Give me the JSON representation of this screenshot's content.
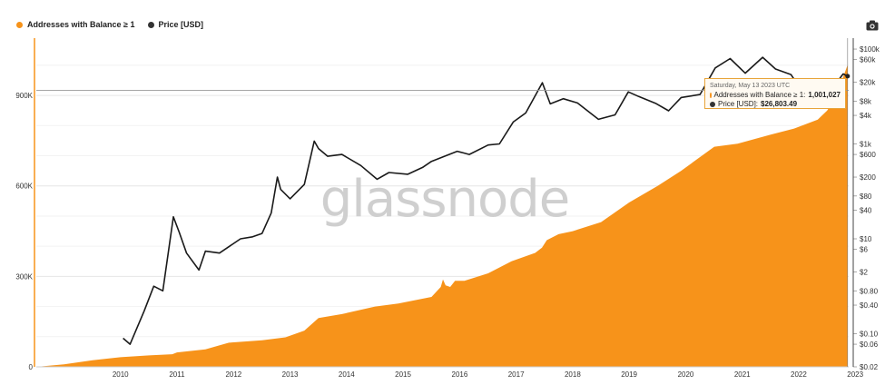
{
  "legend": {
    "series1": "Addresses with Balance ≥ 1",
    "series2": "Price [USD]"
  },
  "colors": {
    "addresses": "#f7931a",
    "price": "#1a1a1a",
    "grid": "#e6e6e6"
  },
  "watermark": "glassnode",
  "icons": {
    "toolbar": "camera-icon"
  },
  "tooltip": {
    "date": "Saturday, May 13 2023 UTC",
    "series1_label": "Addresses with Balance ≥ 1:",
    "series1_value": "1,001,027",
    "series2_label": "Price [USD]:",
    "series2_value": "$26,803.49"
  },
  "chart_data": {
    "type": "area",
    "title": "",
    "xlabel": "",
    "ylabel": "",
    "x_tick_labels": [
      "2010",
      "2011",
      "2012",
      "2013",
      "2014",
      "2015",
      "2016",
      "2017",
      "2018",
      "2019",
      "2020",
      "2021",
      "2022",
      "2023"
    ],
    "y_left_tick_labels": [
      "0",
      "300K",
      "600K",
      "900K"
    ],
    "y_left_ticks": [
      0,
      300000,
      600000,
      900000
    ],
    "y_right_tick_labels": [
      "$100k",
      "$60k",
      "$20k",
      "$8k",
      "$4k",
      "$1k",
      "$600",
      "$200",
      "$80",
      "$40",
      "$10",
      "$6",
      "$2",
      "$0.80",
      "$0.40",
      "$0.10",
      "$0.06",
      "$0.02"
    ],
    "y_right_ticks": [
      100000,
      60000,
      20000,
      8000,
      4000,
      1000,
      600,
      200,
      80,
      40,
      10,
      6,
      2,
      0.8,
      0.4,
      0.1,
      0.06,
      0.02
    ],
    "y_right_scale": "log",
    "grid": true,
    "legend_position": "top-left",
    "reference_line": 917000,
    "series": [
      {
        "name": "Addresses with Balance ≥ 1",
        "axis": "left",
        "kind": "area",
        "x": [
          "2009-01-03",
          "2009-07-01",
          "2010-01-01",
          "2010-07-01",
          "2011-01-01",
          "2011-06-01",
          "2011-07-01",
          "2012-01-01",
          "2012-06-01",
          "2013-01-01",
          "2013-06-01",
          "2013-10-01",
          "2014-01-01",
          "2014-06-01",
          "2015-01-01",
          "2015-06-01",
          "2016-01-01",
          "2016-03-01",
          "2016-03-15",
          "2016-04-01",
          "2016-05-01",
          "2016-06-01",
          "2016-08-01",
          "2017-01-01",
          "2017-06-01",
          "2017-11-01",
          "2017-12-15",
          "2018-01-15",
          "2018-04-01",
          "2018-07-01",
          "2019-01-01",
          "2019-07-01",
          "2020-01-01",
          "2020-06-01",
          "2021-01-01",
          "2021-06-01",
          "2022-01-01",
          "2022-06-01",
          "2022-11-01",
          "2023-01-01",
          "2023-03-01",
          "2023-05-13"
        ],
        "values": [
          0,
          8000,
          22000,
          32000,
          38000,
          42000,
          48000,
          58000,
          80000,
          88000,
          98000,
          120000,
          162000,
          175000,
          200000,
          210000,
          232000,
          265000,
          290000,
          270000,
          265000,
          285000,
          285000,
          310000,
          350000,
          378000,
          395000,
          420000,
          440000,
          450000,
          480000,
          545000,
          600000,
          650000,
          730000,
          740000,
          770000,
          790000,
          820000,
          850000,
          900000,
          1001027
        ]
      },
      {
        "name": "Price [USD]",
        "axis": "right",
        "kind": "line",
        "x": [
          "2010-07-18",
          "2010-09-01",
          "2010-12-01",
          "2011-02-01",
          "2011-04-01",
          "2011-06-08",
          "2011-07-15",
          "2011-09-01",
          "2011-11-20",
          "2012-01-01",
          "2012-04-01",
          "2012-08-15",
          "2012-11-01",
          "2013-01-01",
          "2013-03-01",
          "2013-04-10",
          "2013-05-01",
          "2013-07-01",
          "2013-10-01",
          "2013-12-04",
          "2014-01-01",
          "2014-03-01",
          "2014-06-01",
          "2014-10-01",
          "2015-01-14",
          "2015-04-01",
          "2015-08-01",
          "2015-11-04",
          "2016-01-01",
          "2016-06-15",
          "2016-09-01",
          "2017-01-01",
          "2017-03-15",
          "2017-06-12",
          "2017-09-01",
          "2017-12-17",
          "2018-02-06",
          "2018-05-01",
          "2018-08-01",
          "2018-12-15",
          "2019-04-01",
          "2019-06-26",
          "2019-09-01",
          "2019-12-18",
          "2020-03-12",
          "2020-06-01",
          "2020-10-01",
          "2021-01-08",
          "2021-04-14",
          "2021-07-20",
          "2021-11-10",
          "2022-02-01",
          "2022-05-12",
          "2022-06-18",
          "2022-08-15",
          "2022-11-21",
          "2023-01-01",
          "2023-03-10",
          "2023-04-14",
          "2023-05-13"
        ],
        "values": [
          0.08,
          0.06,
          0.3,
          1,
          0.8,
          29,
          14,
          5,
          2.2,
          5.5,
          5,
          10,
          11,
          13,
          35,
          200,
          110,
          70,
          140,
          1150,
          800,
          550,
          600,
          350,
          180,
          250,
          230,
          320,
          430,
          700,
          600,
          950,
          1000,
          2900,
          4500,
          19500,
          7000,
          9000,
          7300,
          3300,
          4100,
          12500,
          10000,
          7200,
          5000,
          9500,
          11000,
          40000,
          63000,
          31000,
          67000,
          38000,
          29000,
          19000,
          23000,
          16000,
          16500,
          21000,
          30000,
          26803
        ]
      }
    ]
  }
}
